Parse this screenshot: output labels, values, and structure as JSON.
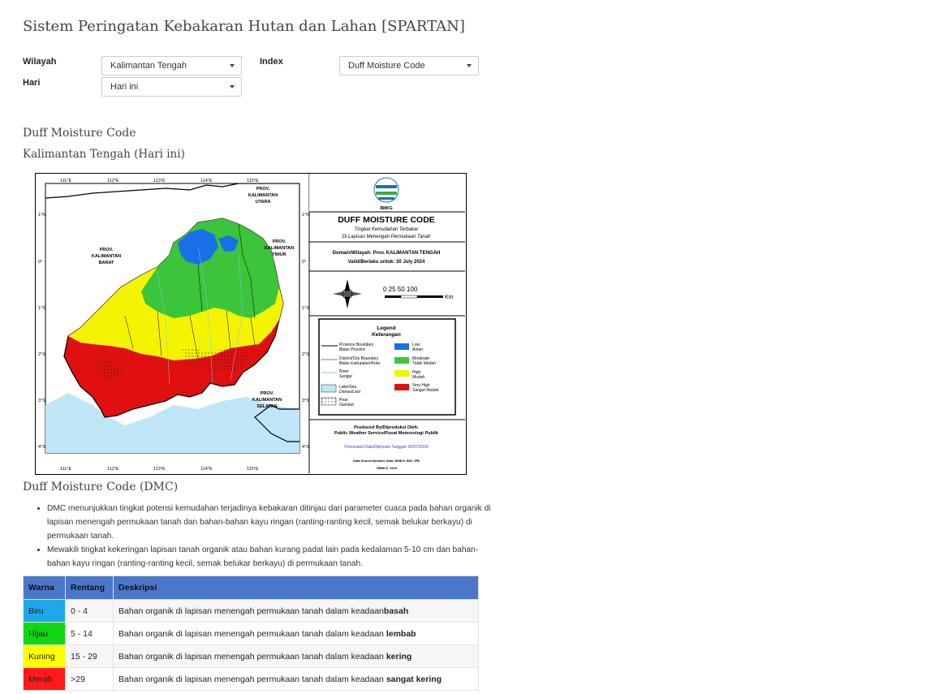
{
  "page_title": "Sistem Peringatan Kebakaran Hutan dan Lahan [SPARTAN]",
  "filters": {
    "wilayah_label": "Wilayah",
    "wilayah_value": "Kalimantan Tengah",
    "index_label": "Index",
    "index_value": "Duff Moisture Code",
    "hari_label": "Hari",
    "hari_value": "Hari ini"
  },
  "section_title": "Duff Moisture Code",
  "section_subtitle": "Kalimantan Tengah (Hari ini)",
  "map": {
    "lon_ticks": [
      "111°E",
      "112°E",
      "113°E",
      "114°E",
      "115°E"
    ],
    "lat_ticks": [
      "1°N",
      "0°",
      "1°S",
      "2°S",
      "3°S",
      "4°S"
    ],
    "region_labels": {
      "kalbar": [
        "PROV.",
        "KALIMANTAN",
        "BARAT"
      ],
      "kaltim": [
        "PROV.",
        "KALIMANTAN",
        "TIMUR"
      ],
      "kalut": [
        "PROV.",
        "KALIMANTAN",
        "UTARA"
      ],
      "kalsel": [
        "PROV.",
        "KALIMANTAN",
        "SELATAN"
      ]
    },
    "logo_text": "BMKG",
    "panel_title": "DUFF MOISTURE CODE",
    "panel_subtitle_1": "Tingkat Kemudahan Terbakar",
    "panel_subtitle_2": "Di Lapisan Menengah Permukaan Tanah",
    "domain_line": "Domain/Wilayah: Prov. KALIMANTAN TENGAH",
    "valid_line": "Valid/Berlaku untuk: 30 July 2024",
    "scale_text": "0  25 50     100",
    "scale_unit": "Km",
    "legend_title": "Legend",
    "legend_subtitle": "Keterangan",
    "legend_items": [
      {
        "label": "Province Boundary",
        "sub": "Batas Provinsi"
      },
      {
        "label": "District/City Boundary",
        "sub": "Batas Kabupaten/Kota"
      },
      {
        "label": "River",
        "sub": "Sungai"
      },
      {
        "label": "Lake/Sea",
        "sub": "Danau/Laut"
      },
      {
        "label": "Peat",
        "sub": "Gambut"
      }
    ],
    "legend_classes": [
      {
        "label": "Low",
        "sub": "Aman",
        "color": "#1a6fe8"
      },
      {
        "label": "Moderate",
        "sub": "Tidak Mudah",
        "color": "#3cc43c"
      },
      {
        "label": "High",
        "sub": "Mudah",
        "color": "#f4f400"
      },
      {
        "label": "Very High",
        "sub": "Sangat Mudah",
        "color": "#e01010"
      }
    ],
    "produced_by": "Produced By/Diproduksi Oleh:",
    "producer": "Public Weather Service/Pusat Meteorologi Publik",
    "processed": "Processed Date/Diproses Tanggal: 30/07/2024",
    "data_source": "Data Source/Sumber Data: BMKG, BIG, IPB",
    "copyright": "©BMKG, 2024"
  },
  "dmc_heading": "Duff Moisture Code (DMC)",
  "bullets": [
    "DMC menunjukkan tingkat potensi kemudahan terjadinya kebakaran ditinjau dari parameter cuaca pada bahan organik di lapisan menengah permukaan tanah dan bahan-bahan kayu ringan (ranting-ranting kecil, semak belukar berkayu) di permukaan tanah.",
    "Mewakili tingkat kekeringan lapisan tanah organik atau bahan kurang padat lain pada kedalaman 5-10 cm dan bahan-bahan kayu ringan (ranting-ranting kecil, semak belukar berkayu) di permukaan tanah."
  ],
  "table": {
    "headers": [
      "Warna",
      "Rentang",
      "Deskripsi"
    ],
    "rows": [
      {
        "warna": "Biru",
        "rentang": "0 - 4",
        "desc": "Bahan organik di lapisan menengah permukaan tanah dalam keadaan",
        "bold": "basah"
      },
      {
        "warna": "Hijau",
        "rentang": "5 - 14",
        "desc": "Bahan organik di lapisan menengah permukaan tanah dalam keadaan ",
        "bold": "lembab"
      },
      {
        "warna": "Kuning",
        "rentang": "15 - 29",
        "desc": "Bahan organik di lapisan menengah permukaan tanah dalam keadaan ",
        "bold": "kering"
      },
      {
        "warna": "Merah",
        "rentang": ">29",
        "desc": "Bahan organik di lapisan menengah permukaan tanah dalam keadaan ",
        "bold": "sangat kering"
      }
    ]
  }
}
